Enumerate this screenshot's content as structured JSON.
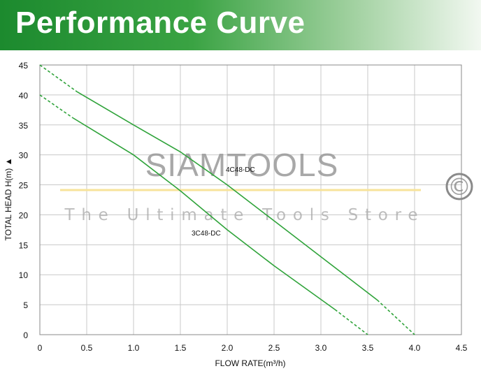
{
  "header": {
    "title": "Performance Curve"
  },
  "watermark": {
    "brand": "SIAMTOOLS",
    "tagline": "The Ultimate Tools Store",
    "copyright_symbol": "©",
    "band_color": "#f7e39a"
  },
  "colors": {
    "curve": "#2fa33a",
    "grid": "#c8c8c8",
    "frame": "#888888"
  },
  "chart_data": {
    "type": "line",
    "title": "",
    "xlabel": "FLOW RATE(m³/h)",
    "ylabel": "TOTAL HEAD H(m) ▲",
    "xlim": [
      0,
      4.5
    ],
    "ylim": [
      0,
      45
    ],
    "xticks": [
      "0",
      "0.5",
      "1.0",
      "1.5",
      "2.0",
      "2.5",
      "3.0",
      "3.5",
      "4.0",
      "4.5"
    ],
    "yticks": [
      "0",
      "5",
      "10",
      "15",
      "20",
      "25",
      "30",
      "35",
      "40",
      "45"
    ],
    "grid": true,
    "series": [
      {
        "name": "4C48-DC",
        "dashed": [
          [
            0,
            45
          ],
          [
            0.4,
            40.5
          ]
        ],
        "solid": [
          [
            0.4,
            40.5
          ],
          [
            1.0,
            35
          ],
          [
            1.5,
            30.5
          ],
          [
            2.0,
            25
          ],
          [
            2.5,
            19
          ],
          [
            3.0,
            13
          ],
          [
            3.6,
            5.8
          ]
        ],
        "dashed_end": [
          [
            3.6,
            5.8
          ],
          [
            4.0,
            0
          ]
        ]
      },
      {
        "name": "3C48-DC",
        "dashed": [
          [
            0,
            40
          ],
          [
            0.35,
            36.2
          ]
        ],
        "solid": [
          [
            0.35,
            36.2
          ],
          [
            1.0,
            30
          ],
          [
            1.5,
            24
          ],
          [
            2.0,
            17.5
          ],
          [
            2.5,
            11.5
          ],
          [
            3.15,
            4.2
          ]
        ],
        "dashed_end": [
          [
            3.15,
            4.2
          ],
          [
            3.5,
            0
          ]
        ]
      }
    ]
  }
}
